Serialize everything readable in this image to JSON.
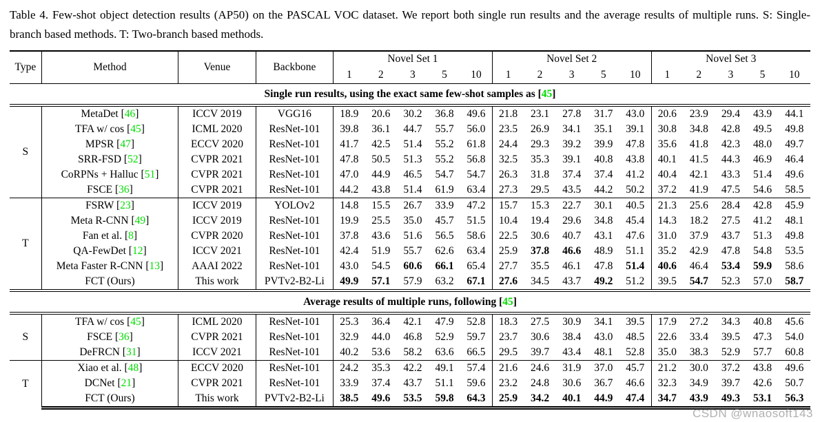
{
  "caption": "Table 4. Few-shot object detection results (AP50) on the PASCAL VOC dataset. We report both single run results and the average results of multiple runs. S: Single-branch based methods. T: Two-branch based methods.",
  "watermark": "CSDN @wnaosoft143",
  "colors": {
    "citation_green": "#00dc00"
  },
  "table": {
    "header": {
      "type": "Type",
      "method": "Method",
      "venue": "Venue",
      "backbone": "Backbone",
      "sets": [
        "Novel Set 1",
        "Novel Set 2",
        "Novel Set 3"
      ],
      "shots": [
        "1",
        "2",
        "3",
        "5",
        "10"
      ]
    },
    "sections": [
      {
        "heading": {
          "pre": "Single run results, using the exact same few-shot samples as [",
          "cite": "45",
          "post": "]"
        },
        "groups": [
          {
            "type": "S",
            "rows": [
              {
                "method": "MetaDet",
                "cite": "46",
                "venue": "ICCV 2019",
                "backbone": "VGG16",
                "values": [
                  "18.9",
                  "20.6",
                  "30.2",
                  "36.8",
                  "49.6",
                  "21.8",
                  "23.1",
                  "27.8",
                  "31.7",
                  "43.0",
                  "20.6",
                  "23.9",
                  "29.4",
                  "43.9",
                  "44.1"
                ],
                "bold": []
              },
              {
                "method": "TFA w/ cos",
                "cite": "45",
                "venue": "ICML 2020",
                "backbone": "ResNet-101",
                "values": [
                  "39.8",
                  "36.1",
                  "44.7",
                  "55.7",
                  "56.0",
                  "23.5",
                  "26.9",
                  "34.1",
                  "35.1",
                  "39.1",
                  "30.8",
                  "34.8",
                  "42.8",
                  "49.5",
                  "49.8"
                ],
                "bold": []
              },
              {
                "method": "MPSR",
                "cite": "47",
                "venue": "ECCV 2020",
                "backbone": "ResNet-101",
                "values": [
                  "41.7",
                  "42.5",
                  "51.4",
                  "55.2",
                  "61.8",
                  "24.4",
                  "29.3",
                  "39.2",
                  "39.9",
                  "47.8",
                  "35.6",
                  "41.8",
                  "42.3",
                  "48.0",
                  "49.7"
                ],
                "bold": []
              },
              {
                "method": "SRR-FSD",
                "cite": "52",
                "venue": "CVPR 2021",
                "backbone": "ResNet-101",
                "values": [
                  "47.8",
                  "50.5",
                  "51.3",
                  "55.2",
                  "56.8",
                  "32.5",
                  "35.3",
                  "39.1",
                  "40.8",
                  "43.8",
                  "40.1",
                  "41.5",
                  "44.3",
                  "46.9",
                  "46.4"
                ],
                "bold": []
              },
              {
                "method": "CoRPNs + Halluc",
                "cite": "51",
                "venue": "CVPR 2021",
                "backbone": "ResNet-101",
                "values": [
                  "47.0",
                  "44.9",
                  "46.5",
                  "54.7",
                  "54.7",
                  "26.3",
                  "31.8",
                  "37.4",
                  "37.4",
                  "41.2",
                  "40.4",
                  "42.1",
                  "43.3",
                  "51.4",
                  "49.6"
                ],
                "bold": []
              },
              {
                "method": "FSCE",
                "cite": "36",
                "venue": "CVPR 2021",
                "backbone": "ResNet-101",
                "values": [
                  "44.2",
                  "43.8",
                  "51.4",
                  "61.9",
                  "63.4",
                  "27.3",
                  "29.5",
                  "43.5",
                  "44.2",
                  "50.2",
                  "37.2",
                  "41.9",
                  "47.5",
                  "54.6",
                  "58.5"
                ],
                "bold": []
              }
            ]
          },
          {
            "type": "T",
            "rows": [
              {
                "method": "FSRW",
                "cite": "23",
                "venue": "ICCV 2019",
                "backbone": "YOLOv2",
                "values": [
                  "14.8",
                  "15.5",
                  "26.7",
                  "33.9",
                  "47.2",
                  "15.7",
                  "15.3",
                  "22.7",
                  "30.1",
                  "40.5",
                  "21.3",
                  "25.6",
                  "28.4",
                  "42.8",
                  "45.9"
                ],
                "bold": []
              },
              {
                "method": "Meta R-CNN",
                "cite": "49",
                "venue": "ICCV 2019",
                "backbone": "ResNet-101",
                "values": [
                  "19.9",
                  "25.5",
                  "35.0",
                  "45.7",
                  "51.5",
                  "10.4",
                  "19.4",
                  "29.6",
                  "34.8",
                  "45.4",
                  "14.3",
                  "18.2",
                  "27.5",
                  "41.2",
                  "48.1"
                ],
                "bold": []
              },
              {
                "method": "Fan et al.",
                "cite": "8",
                "venue": "CVPR 2020",
                "backbone": "ResNet-101",
                "values": [
                  "37.8",
                  "43.6",
                  "51.6",
                  "56.5",
                  "58.6",
                  "22.5",
                  "30.6",
                  "40.7",
                  "43.1",
                  "47.6",
                  "31.0",
                  "37.9",
                  "43.7",
                  "51.3",
                  "49.8"
                ],
                "bold": []
              },
              {
                "method": "QA-FewDet",
                "cite": "12",
                "venue": "ICCV 2021",
                "backbone": "ResNet-101",
                "values": [
                  "42.4",
                  "51.9",
                  "55.7",
                  "62.6",
                  "63.4",
                  "25.9",
                  "37.8",
                  "46.6",
                  "48.9",
                  "51.1",
                  "35.2",
                  "42.9",
                  "47.8",
                  "54.8",
                  "53.5"
                ],
                "bold": [
                  6,
                  7
                ]
              },
              {
                "method": "Meta Faster R-CNN",
                "cite": "13",
                "venue": "AAAI 2022",
                "backbone": "ResNet-101",
                "values": [
                  "43.0",
                  "54.5",
                  "60.6",
                  "66.1",
                  "65.4",
                  "27.7",
                  "35.5",
                  "46.1",
                  "47.8",
                  "51.4",
                  "40.6",
                  "46.4",
                  "53.4",
                  "59.9",
                  "58.6"
                ],
                "bold": [
                  2,
                  3,
                  9,
                  10,
                  12,
                  13
                ]
              },
              {
                "method": "FCT (Ours)",
                "cite": null,
                "venue": "This work",
                "backbone": "PVTv2-B2-Li",
                "values": [
                  "49.9",
                  "57.1",
                  "57.9",
                  "63.2",
                  "67.1",
                  "27.6",
                  "34.5",
                  "43.7",
                  "49.2",
                  "51.2",
                  "39.5",
                  "54.7",
                  "52.3",
                  "57.0",
                  "58.7"
                ],
                "bold": [
                  0,
                  1,
                  4,
                  5,
                  8,
                  11,
                  14
                ]
              }
            ]
          }
        ]
      },
      {
        "heading": {
          "pre": "Average results of multiple runs, following [",
          "cite": "45",
          "post": "]"
        },
        "groups": [
          {
            "type": "S",
            "rows": [
              {
                "method": "TFA w/ cos",
                "cite": "45",
                "venue": "ICML 2020",
                "backbone": "ResNet-101",
                "values": [
                  "25.3",
                  "36.4",
                  "42.1",
                  "47.9",
                  "52.8",
                  "18.3",
                  "27.5",
                  "30.9",
                  "34.1",
                  "39.5",
                  "17.9",
                  "27.2",
                  "34.3",
                  "40.8",
                  "45.6"
                ],
                "bold": []
              },
              {
                "method": "FSCE",
                "cite": "36",
                "venue": "CVPR 2021",
                "backbone": "ResNet-101",
                "values": [
                  "32.9",
                  "44.0",
                  "46.8",
                  "52.9",
                  "59.7",
                  "23.7",
                  "30.6",
                  "38.4",
                  "43.0",
                  "48.5",
                  "22.6",
                  "33.4",
                  "39.5",
                  "47.3",
                  "54.0"
                ],
                "bold": []
              },
              {
                "method": "DeFRCN",
                "cite": "31",
                "venue": "ICCV 2021",
                "backbone": "ResNet-101",
                "values": [
                  "40.2",
                  "53.6",
                  "58.2",
                  "63.6",
                  "66.5",
                  "29.5",
                  "39.7",
                  "43.4",
                  "48.1",
                  "52.8",
                  "35.0",
                  "38.3",
                  "52.9",
                  "57.7",
                  "60.8"
                ],
                "bold": []
              }
            ]
          },
          {
            "type": "T",
            "rows": [
              {
                "method": "Xiao et al.",
                "cite": "48",
                "venue": "ECCV 2020",
                "backbone": "ResNet-101",
                "values": [
                  "24.2",
                  "35.3",
                  "42.2",
                  "49.1",
                  "57.4",
                  "21.6",
                  "24.6",
                  "31.9",
                  "37.0",
                  "45.7",
                  "21.2",
                  "30.0",
                  "37.2",
                  "43.8",
                  "49.6"
                ],
                "bold": []
              },
              {
                "method": "DCNet",
                "cite": "21",
                "venue": "CVPR 2021",
                "backbone": "ResNet-101",
                "values": [
                  "33.9",
                  "37.4",
                  "43.7",
                  "51.1",
                  "59.6",
                  "23.2",
                  "24.8",
                  "30.6",
                  "36.7",
                  "46.6",
                  "32.3",
                  "34.9",
                  "39.7",
                  "42.6",
                  "50.7"
                ],
                "bold": []
              },
              {
                "method": "FCT (Ours)",
                "cite": null,
                "venue": "This work",
                "backbone": "PVTv2-B2-Li",
                "values": [
                  "38.5",
                  "49.6",
                  "53.5",
                  "59.8",
                  "64.3",
                  "25.9",
                  "34.2",
                  "40.1",
                  "44.9",
                  "47.4",
                  "34.7",
                  "43.9",
                  "49.3",
                  "53.1",
                  "56.3"
                ],
                "bold": [
                  0,
                  1,
                  2,
                  3,
                  4,
                  5,
                  6,
                  7,
                  8,
                  9,
                  10,
                  11,
                  12,
                  13,
                  14
                ]
              }
            ]
          }
        ]
      }
    ]
  }
}
